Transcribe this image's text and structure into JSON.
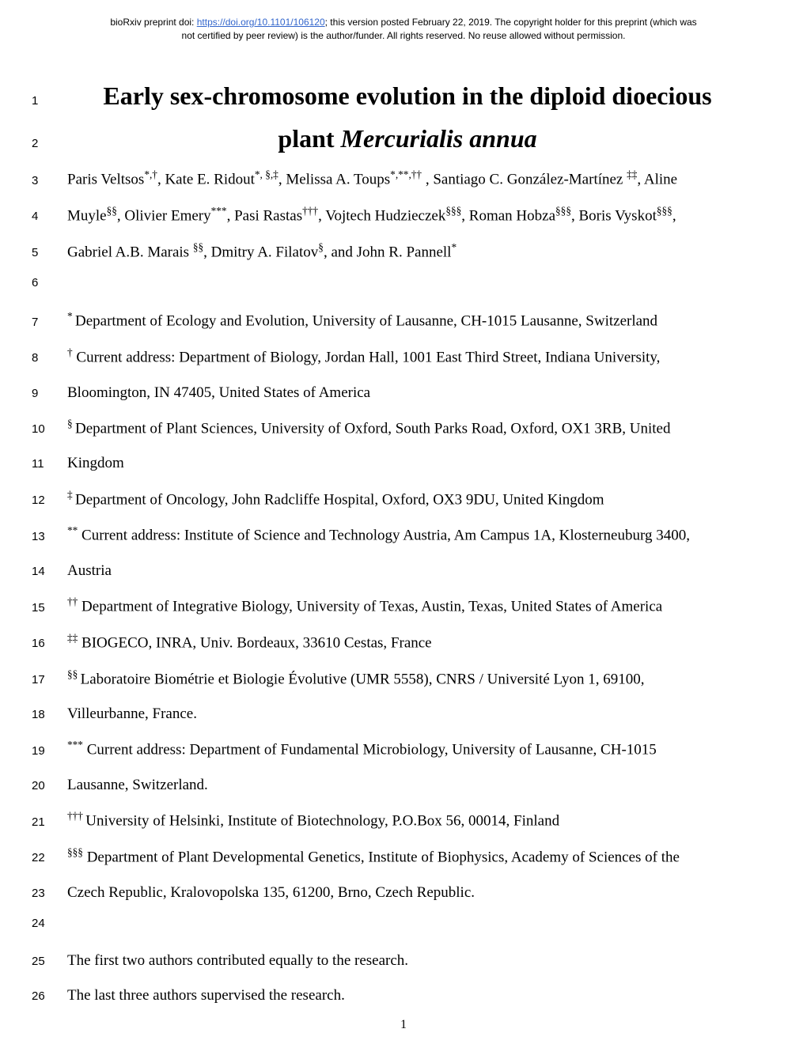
{
  "header": {
    "prefix": "bioRxiv preprint doi: ",
    "doi_url": "https://doi.org/10.1101/106120",
    "suffix": "; this version posted February 22, 2019. The copyright holder for this preprint (which was",
    "line2": "not certified by peer review) is the author/funder. All rights reserved. No reuse allowed without permission."
  },
  "title": {
    "line1": "Early sex-chromosome evolution in the diploid dioecious",
    "line2_prefix": "plant ",
    "line2_italic": "Mercurialis annua"
  },
  "lines": {
    "3": {
      "parts": [
        {
          "text": "Paris Veltsos"
        },
        {
          "sup": "*,†"
        },
        {
          "text": ", Kate E. Ridout"
        },
        {
          "sup": "*, §,‡"
        },
        {
          "text": ", Melissa A. Toups"
        },
        {
          "sup": "*,**,††"
        },
        {
          "text": " , Santiago C. González-Martínez "
        },
        {
          "sup": "‡‡"
        },
        {
          "text": ", Aline"
        }
      ]
    },
    "4": {
      "parts": [
        {
          "text": "Muyle"
        },
        {
          "sup": "§§"
        },
        {
          "text": ", Olivier Emery"
        },
        {
          "sup": "***"
        },
        {
          "text": ", Pasi Rastas"
        },
        {
          "sup": "†††"
        },
        {
          "text": ", Vojtech Hudzieczek"
        },
        {
          "sup": "§§§"
        },
        {
          "text": ", Roman Hobza"
        },
        {
          "sup": "§§§"
        },
        {
          "text": ", Boris Vyskot"
        },
        {
          "sup": "§§§"
        },
        {
          "text": ","
        }
      ]
    },
    "5": {
      "parts": [
        {
          "text": "Gabriel A.B. Marais "
        },
        {
          "sup": "§§"
        },
        {
          "text": ", Dmitry A. Filatov"
        },
        {
          "sup": "§"
        },
        {
          "text": ", and John R. Pannell"
        },
        {
          "sup": "*"
        }
      ]
    },
    "7": {
      "parts": [
        {
          "sup": "* "
        },
        {
          "text": "Department of Ecology and Evolution, University of Lausanne, CH-1015 Lausanne, Switzerland"
        }
      ]
    },
    "8": {
      "parts": [
        {
          "sup": "†"
        },
        {
          "text": " Current address: Department of Biology, Jordan Hall, 1001 East Third Street, Indiana University,"
        }
      ]
    },
    "9": {
      "parts": [
        {
          "text": "Bloomington, IN 47405, United States of America"
        }
      ]
    },
    "10": {
      "parts": [
        {
          "sup": "§ "
        },
        {
          "text": "Department of Plant Sciences, University of Oxford, South Parks Road, Oxford, OX1 3RB, United"
        }
      ]
    },
    "11": {
      "parts": [
        {
          "text": "Kingdom"
        }
      ]
    },
    "12": {
      "parts": [
        {
          "sup": "‡ "
        },
        {
          "text": "Department of Oncology, John Radcliffe Hospital, Oxford, OX3 9DU, United Kingdom"
        }
      ]
    },
    "13": {
      "parts": [
        {
          "sup": "**"
        },
        {
          "text": " Current address: Institute of Science and Technology Austria, Am Campus 1A, Klosterneuburg 3400,"
        }
      ]
    },
    "14": {
      "parts": [
        {
          "text": "Austria"
        }
      ]
    },
    "15": {
      "parts": [
        {
          "sup": "††"
        },
        {
          "text": " Department of Integrative Biology, University of Texas, Austin, Texas, United States of America"
        }
      ]
    },
    "16": {
      "parts": [
        {
          "sup": "‡‡"
        },
        {
          "text": " BIOGECO, INRA, Univ. Bordeaux, 33610 Cestas, France"
        }
      ]
    },
    "17": {
      "parts": [
        {
          "sup": "§§ "
        },
        {
          "text": "Laboratoire Biométrie et Biologie Évolutive (UMR 5558), CNRS / Université Lyon 1, 69100,"
        }
      ]
    },
    "18": {
      "parts": [
        {
          "text": "Villeurbanne, France."
        }
      ]
    },
    "19": {
      "parts": [
        {
          "sup": "***"
        },
        {
          "text": " Current address: Department of Fundamental Microbiology, University of Lausanne, CH-1015"
        }
      ]
    },
    "20": {
      "parts": [
        {
          "text": "Lausanne, Switzerland."
        }
      ]
    },
    "21": {
      "parts": [
        {
          "sup": "††† "
        },
        {
          "text": "University of Helsinki, Institute of Biotechnology, P.O.Box 56, 00014, Finland"
        }
      ]
    },
    "22": {
      "parts": [
        {
          "sup": "§§§"
        },
        {
          "text": " Department of Plant Developmental Genetics, Institute of Biophysics, Academy of Sciences of the"
        }
      ]
    },
    "23": {
      "parts": [
        {
          "text": "Czech Republic, Kralovopolska 135, 61200, Brno, Czech Republic."
        }
      ]
    },
    "25": {
      "parts": [
        {
          "text": "The first two authors contributed equally to the research."
        }
      ]
    },
    "26": {
      "parts": [
        {
          "text": "The last three authors supervised the research."
        }
      ]
    }
  },
  "page_number": "1"
}
